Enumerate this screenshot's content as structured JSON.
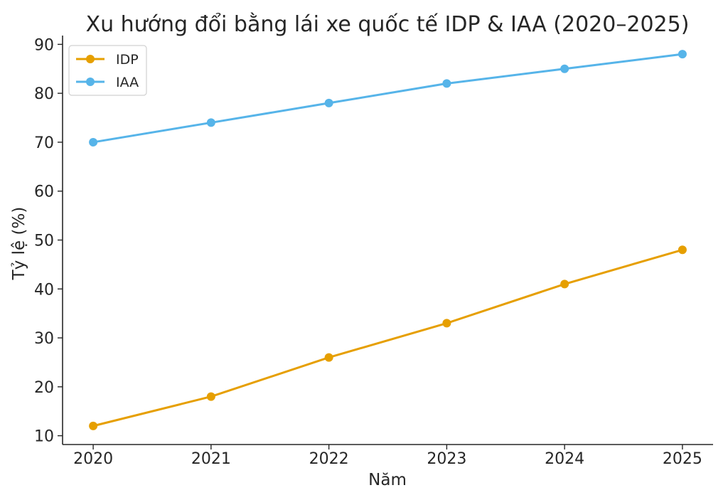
{
  "chart_data": {
    "type": "line",
    "title": "Xu hướng đổi bằng lái xe quốc tế IDP & IAA (2020–2025)",
    "xlabel": "Năm",
    "ylabel": "Tỷ lệ (%)",
    "x": [
      2020,
      2021,
      2022,
      2023,
      2024,
      2025
    ],
    "x_tick_labels": [
      "2020",
      "2021",
      "2022",
      "2023",
      "2024",
      "2025"
    ],
    "y_ticks": [
      10,
      20,
      30,
      40,
      50,
      60,
      70,
      80,
      90
    ],
    "y_tick_labels": [
      "10",
      "20",
      "30",
      "40",
      "50",
      "60",
      "70",
      "80",
      "90"
    ],
    "ylim": [
      8.2,
      91.8
    ],
    "xlim": [
      2019.74,
      2025.26
    ],
    "grid": false,
    "legend_position": "top-left",
    "series": [
      {
        "name": "IDP",
        "color": "#E69F00",
        "values": [
          12,
          18,
          26,
          33,
          41,
          48
        ]
      },
      {
        "name": "IAA",
        "color": "#56B4E9",
        "values": [
          70,
          74,
          78,
          82,
          85,
          88
        ]
      }
    ]
  }
}
